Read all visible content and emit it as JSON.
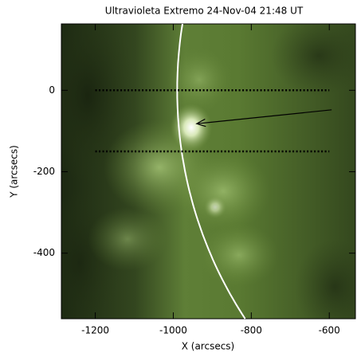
{
  "chart_data": {
    "type": "image",
    "title": "Ultravioleta Extremo 24-Nov-04 21:48 UT",
    "xlabel": "X (arcsecs)",
    "ylabel": "Y (arcsecs)",
    "xlim": [
      -1287,
      -533
    ],
    "ylim": [
      -561,
      163
    ],
    "xticks": [
      -1200,
      -1000,
      -800,
      -600
    ],
    "yticks": [
      0,
      -200,
      -400
    ],
    "limb_radius": 990,
    "limb_color": "#ffffff",
    "hlines": [
      0,
      -150
    ],
    "hline_x": [
      -1200,
      -600
    ],
    "arrow": {
      "x": [
        -594,
        -940
      ],
      "y": [
        -48,
        -82
      ]
    }
  }
}
